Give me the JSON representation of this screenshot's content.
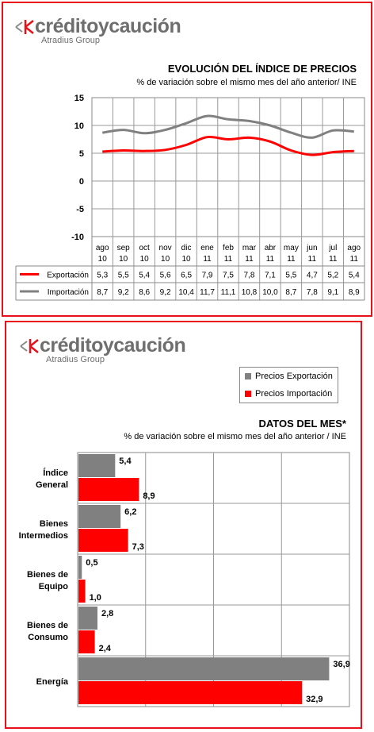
{
  "colors": {
    "accent": "#e8101a",
    "gray_series": "#808080",
    "red_series": "#ff0000"
  },
  "logo": {
    "name": "créditoycaución",
    "tagline": "Atradius Group"
  },
  "chart_data": [
    {
      "type": "line",
      "title": "EVOLUCIÓN DEL ÍNDICE DE PRECIOS",
      "subtitle": "% de variación sobre el mismo mes del año anterior/ INE",
      "categories": [
        [
          "ago",
          "10"
        ],
        [
          "sep",
          "10"
        ],
        [
          "oct",
          "10"
        ],
        [
          "nov",
          "10"
        ],
        [
          "dic",
          "10"
        ],
        [
          "ene",
          "11"
        ],
        [
          "feb",
          "11"
        ],
        [
          "mar",
          "11"
        ],
        [
          "abr",
          "11"
        ],
        [
          "may",
          "11"
        ],
        [
          "jun",
          "11"
        ],
        [
          "jul",
          "11"
        ],
        [
          "ago",
          "11"
        ]
      ],
      "ylim": [
        -10,
        15
      ],
      "yticks": [
        "15",
        "10",
        "5",
        "0",
        "-5",
        "-10"
      ],
      "grid": true,
      "series": [
        {
          "name": "Exportación",
          "color": "#ff0000",
          "values": [
            5.3,
            5.5,
            5.4,
            5.6,
            6.5,
            7.9,
            7.5,
            7.8,
            7.1,
            5.5,
            4.7,
            5.2,
            5.4
          ],
          "labels": [
            "5,3",
            "5,5",
            "5,4",
            "5,6",
            "6,5",
            "7,9",
            "7,5",
            "7,8",
            "7,1",
            "5,5",
            "4,7",
            "5,2",
            "5,4"
          ]
        },
        {
          "name": "Importación",
          "color": "#808080",
          "values": [
            8.7,
            9.2,
            8.6,
            9.2,
            10.4,
            11.7,
            11.1,
            10.8,
            10.0,
            8.7,
            7.8,
            9.1,
            8.9
          ],
          "labels": [
            "8,7",
            "9,2",
            "8,6",
            "9,2",
            "10,4",
            "11,7",
            "11,1",
            "10,8",
            "10,0",
            "8,7",
            "7,8",
            "9,1",
            "8,9"
          ]
        }
      ]
    },
    {
      "type": "bar",
      "title": "DATOS DEL MES*",
      "subtitle": "% de variación sobre el mismo mes del año anterior / INE",
      "legend_position": "top-right",
      "categories": [
        [
          "Índice",
          "General"
        ],
        [
          "Bienes",
          "Intermedios"
        ],
        [
          "Bienes de",
          "Equipo"
        ],
        [
          "Bienes de",
          "Consumo"
        ],
        [
          "Energía"
        ]
      ],
      "xlim": [
        0,
        40
      ],
      "grid": true,
      "series": [
        {
          "name": "Precios Exportación",
          "color": "#808080",
          "values": [
            5.4,
            6.2,
            0.5,
            2.8,
            36.9
          ],
          "labels": [
            "5,4",
            "6,2",
            "0,5",
            "2,8",
            "36,9"
          ]
        },
        {
          "name": "Precios Importación",
          "color": "#ff0000",
          "values": [
            8.9,
            7.3,
            1.0,
            2.4,
            32.9
          ],
          "labels": [
            "8,9",
            "7,3",
            "1,0",
            "2,4",
            "32,9"
          ]
        }
      ]
    }
  ]
}
